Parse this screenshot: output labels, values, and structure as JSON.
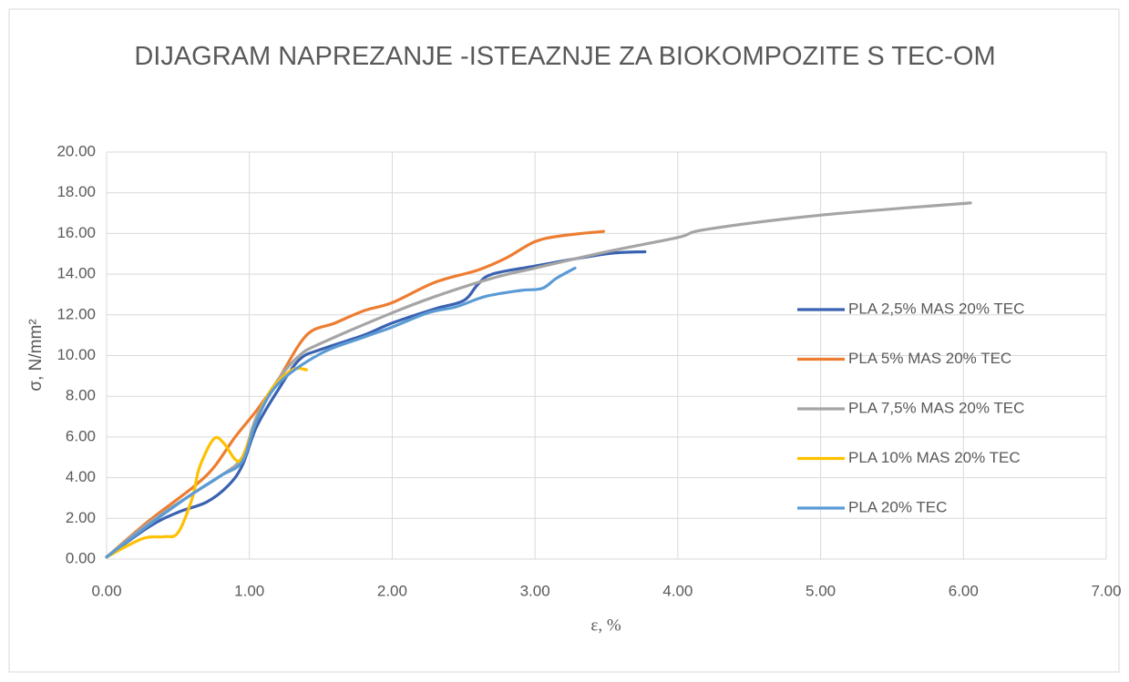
{
  "chart_data": {
    "type": "line",
    "title": "DIJAGRAM NAPREZANJE -ISTEAZNJE ZA BIOKOMPOZITE S TEC-OM",
    "x_label": "ε, %",
    "y_label": "σ, N/mm²",
    "xlim": [
      0,
      7
    ],
    "xticks": [
      {
        "value": 0,
        "label": "0.00"
      },
      {
        "value": 1,
        "label": "1.00"
      },
      {
        "value": 2,
        "label": "2.00"
      },
      {
        "value": 3,
        "label": "3.00"
      },
      {
        "value": 4,
        "label": "4.00"
      },
      {
        "value": 5,
        "label": "5.00"
      },
      {
        "value": 6,
        "label": "6.00"
      },
      {
        "value": 7,
        "label": "7.00"
      }
    ],
    "ylim": [
      0,
      20
    ],
    "yticks": [
      {
        "value": 0,
        "label": "0.00"
      },
      {
        "value": 2,
        "label": "2.00"
      },
      {
        "value": 4,
        "label": "4.00"
      },
      {
        "value": 6,
        "label": "6.00"
      },
      {
        "value": 8,
        "label": "8.00"
      },
      {
        "value": 10,
        "label": "10.00"
      },
      {
        "value": 12,
        "label": "12.00"
      },
      {
        "value": 14,
        "label": "14.00"
      },
      {
        "value": 16,
        "label": "16.00"
      },
      {
        "value": 18,
        "label": "18.00"
      },
      {
        "value": 20,
        "label": "20.00"
      }
    ],
    "grid": true,
    "legend": "right",
    "series": [
      {
        "name": "PLA 2,5% MAS 20% TEC",
        "color": "#3a62b0",
        "x": [
          0,
          0.3,
          0.5,
          0.7,
          0.85,
          0.95,
          1.05,
          1.2,
          1.35,
          1.5,
          1.8,
          2.0,
          2.3,
          2.5,
          2.6,
          2.7,
          3.0,
          3.5,
          3.77
        ],
        "values": [
          0.1,
          1.6,
          2.3,
          2.8,
          3.6,
          4.6,
          6.5,
          8.3,
          9.8,
          10.3,
          11.0,
          11.6,
          12.3,
          12.7,
          13.5,
          14.0,
          14.4,
          15.0,
          15.1
        ]
      },
      {
        "name": "PLA 5% MAS 20% TEC",
        "color": "#ed7d31",
        "x": [
          0,
          0.3,
          0.6,
          0.75,
          0.9,
          1.05,
          1.2,
          1.4,
          1.6,
          1.8,
          2.0,
          2.3,
          2.6,
          2.8,
          3.0,
          3.2,
          3.48
        ],
        "values": [
          0.1,
          1.9,
          3.5,
          4.5,
          6.0,
          7.3,
          8.8,
          11.0,
          11.6,
          12.2,
          12.6,
          13.6,
          14.2,
          14.8,
          15.6,
          15.9,
          16.1
        ]
      },
      {
        "name": "PLA 7,5% MAS 20% TEC",
        "color": "#a5a5a5",
        "x": [
          0,
          0.3,
          0.6,
          0.8,
          0.95,
          1.05,
          1.2,
          1.35,
          1.5,
          2.0,
          2.3,
          2.7,
          3.0,
          3.5,
          4.0,
          4.2,
          5.0,
          6.05
        ],
        "values": [
          0.1,
          1.8,
          3.2,
          4.1,
          5.0,
          7.0,
          8.8,
          10.0,
          10.6,
          12.1,
          12.9,
          13.8,
          14.3,
          15.1,
          15.8,
          16.2,
          16.9,
          17.5
        ]
      },
      {
        "name": "PLA 10% MAS 20% TEC",
        "color": "#ffc000",
        "x": [
          0,
          0.25,
          0.4,
          0.5,
          0.6,
          0.65,
          0.75,
          0.82,
          0.9,
          0.95,
          1.05,
          1.15,
          1.3,
          1.4
        ],
        "values": [
          0.1,
          1.0,
          1.1,
          1.3,
          3.0,
          4.5,
          5.9,
          5.7,
          4.9,
          5.0,
          6.8,
          8.3,
          9.3,
          9.3
        ]
      },
      {
        "name": "PLA 20% TEC",
        "color": "#5b9bd5",
        "x": [
          0,
          0.3,
          0.6,
          0.8,
          0.95,
          1.05,
          1.2,
          1.5,
          1.8,
          2.0,
          2.25,
          2.45,
          2.65,
          2.9,
          3.05,
          3.15,
          3.28
        ],
        "values": [
          0.1,
          1.7,
          3.2,
          4.1,
          4.8,
          6.8,
          8.6,
          10.1,
          10.9,
          11.4,
          12.1,
          12.4,
          12.9,
          13.2,
          13.3,
          13.8,
          14.3
        ]
      }
    ]
  }
}
